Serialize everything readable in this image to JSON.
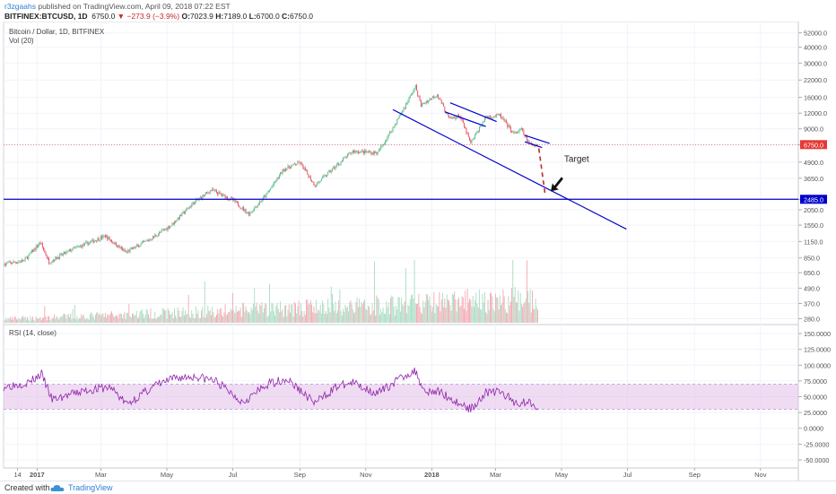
{
  "header": {
    "author": "r3zgaahs",
    "published_text": "published on TradingView.com, April 09, 2018 07:22 EST",
    "symbol": "BITFINEX:BTCUSD, 1D",
    "last": "6750.0",
    "change": "−273.9 (−3.9%)",
    "o_label": "O:",
    "o_value": "7023.9",
    "h_label": "H:",
    "h_value": "7189.0",
    "l_label": "L:",
    "l_value": "6700.0",
    "c_label": "C:",
    "c_value": "6750.0"
  },
  "legend": {
    "series_title": "Bitcoin / Dollar, 1D, BITFINEX",
    "vol_label": "Vol (20)",
    "rsi_label": "RSI (14, close)"
  },
  "price_axis_ticks": [
    "52000.0",
    "40000.0",
    "30000.0",
    "22000.0",
    "16000.0",
    "12000.0",
    "9000.0",
    "6750.0",
    "4900.0",
    "3650.0",
    "2485.0",
    "2050.0",
    "1550.0",
    "1150.0",
    "850.0",
    "650.0",
    "490.0",
    "370.0",
    "280.0"
  ],
  "rsi_axis_ticks": [
    "150.0000",
    "125.0000",
    "100.0000",
    "75.0000",
    "50.0000",
    "25.0000",
    "0.0000",
    "-25.0000",
    "-50.0000"
  ],
  "time_axis_ticks": [
    "14",
    "2017",
    "Mar",
    "May",
    "Jul",
    "Sep",
    "Nov",
    "2018",
    "Mar",
    "May",
    "Jul",
    "Sep",
    "Nov"
  ],
  "price_tag": "6750.0",
  "level_tag": "2485.0",
  "annotation": "Target",
  "colors": {
    "up": "#53b987",
    "down": "#eb4d5c",
    "vol_up": "#a9dcc3",
    "vol_down": "#f4a9b0",
    "drawing": "#0000cc",
    "arrow": "#c62828",
    "rsi": "#8e24aa",
    "rsi_band": "#e1bee7",
    "tag_red": "#e53935",
    "tag_blue": "#0000cc"
  },
  "chart_data": {
    "type": "candlestick",
    "title": "Bitcoin / Dollar, 1D, BITFINEX",
    "y_scale": "log",
    "x_range": [
      "2016-12-01",
      "2018-12-06"
    ],
    "ylim": [
      260,
      60000
    ],
    "last_price": 6750.0,
    "ohlc_last": {
      "open": 7023.9,
      "high": 7189.0,
      "low": 6700.0,
      "close": 6750.0
    },
    "horizontal_levels": [
      {
        "price": 2485.0,
        "color": "blue"
      },
      {
        "price": 6750.0,
        "color": "red",
        "style": "dotted"
      }
    ],
    "close_path": [
      [
        "2016-12-01",
        760
      ],
      [
        "2016-12-20",
        810
      ],
      [
        "2017-01-04",
        1130
      ],
      [
        "2017-01-12",
        790
      ],
      [
        "2017-02-01",
        980
      ],
      [
        "2017-03-05",
        1270
      ],
      [
        "2017-03-24",
        940
      ],
      [
        "2017-04-15",
        1190
      ],
      [
        "2017-05-05",
        1550
      ],
      [
        "2017-05-25",
        2300
      ],
      [
        "2017-06-11",
        2950
      ],
      [
        "2017-07-01",
        2450
      ],
      [
        "2017-07-16",
        1900
      ],
      [
        "2017-08-01",
        2700
      ],
      [
        "2017-08-17",
        4300
      ],
      [
        "2017-09-01",
        4850
      ],
      [
        "2017-09-15",
        3200
      ],
      [
        "2017-10-01",
        4300
      ],
      [
        "2017-10-20",
        6000
      ],
      [
        "2017-11-12",
        5800
      ],
      [
        "2017-11-28",
        9800
      ],
      [
        "2017-12-17",
        19500
      ],
      [
        "2017-12-22",
        13800
      ],
      [
        "2018-01-06",
        17000
      ],
      [
        "2018-01-17",
        10800
      ],
      [
        "2018-01-27",
        11400
      ],
      [
        "2018-02-06",
        6900
      ],
      [
        "2018-02-20",
        11200
      ],
      [
        "2018-03-05",
        11500
      ],
      [
        "2018-03-18",
        8200
      ],
      [
        "2018-03-25",
        8900
      ],
      [
        "2018-04-01",
        6800
      ],
      [
        "2018-04-09",
        6750
      ]
    ],
    "trendlines": [
      {
        "name": "support line",
        "points": [
          [
            "2017-11-26",
            12800
          ],
          [
            "2018-06-30",
            1440
          ]
        ]
      },
      {
        "name": "channel upper",
        "points": [
          [
            "2018-01-18",
            14500
          ],
          [
            "2018-03-02",
            10300
          ]
        ]
      },
      {
        "name": "channel lower",
        "points": [
          [
            "2018-01-13",
            12300
          ],
          [
            "2018-02-20",
            9400
          ]
        ]
      },
      {
        "name": "flag upper",
        "points": [
          [
            "2018-03-28",
            8000
          ],
          [
            "2018-04-20",
            6900
          ]
        ]
      },
      {
        "name": "flag lower",
        "points": [
          [
            "2018-03-28",
            7100
          ],
          [
            "2018-04-13",
            6400
          ]
        ]
      }
    ],
    "projection": {
      "from": [
        "2018-04-10",
        6300
      ],
      "to": [
        "2018-04-16",
        2650
      ],
      "style": "dashed"
    },
    "target_label": "Target",
    "volume": {
      "label": "Vol (20)"
    },
    "rsi": {
      "label": "RSI (14, close)",
      "ylim": [
        -60,
        160
      ],
      "bands": [
        30,
        70
      ],
      "path": [
        [
          "2016-12-01",
          66
        ],
        [
          "2016-12-25",
          73
        ],
        [
          "2017-01-05",
          86
        ],
        [
          "2017-01-15",
          45
        ],
        [
          "2017-02-15",
          60
        ],
        [
          "2017-03-10",
          65
        ],
        [
          "2017-03-25",
          38
        ],
        [
          "2017-04-20",
          68
        ],
        [
          "2017-05-10",
          80
        ],
        [
          "2017-05-28",
          82
        ],
        [
          "2017-06-15",
          75
        ],
        [
          "2017-07-10",
          42
        ],
        [
          "2017-08-05",
          72
        ],
        [
          "2017-08-20",
          78
        ],
        [
          "2017-09-15",
          40
        ],
        [
          "2017-10-05",
          66
        ],
        [
          "2017-10-20",
          72
        ],
        [
          "2017-11-12",
          55
        ],
        [
          "2017-12-08",
          85
        ],
        [
          "2017-12-17",
          90
        ],
        [
          "2017-12-25",
          60
        ],
        [
          "2018-01-10",
          57
        ],
        [
          "2018-01-20",
          45
        ],
        [
          "2018-02-06",
          30
        ],
        [
          "2018-02-20",
          57
        ],
        [
          "2018-03-05",
          58
        ],
        [
          "2018-03-20",
          40
        ],
        [
          "2018-04-01",
          42
        ],
        [
          "2018-04-09",
          35
        ]
      ]
    }
  }
}
